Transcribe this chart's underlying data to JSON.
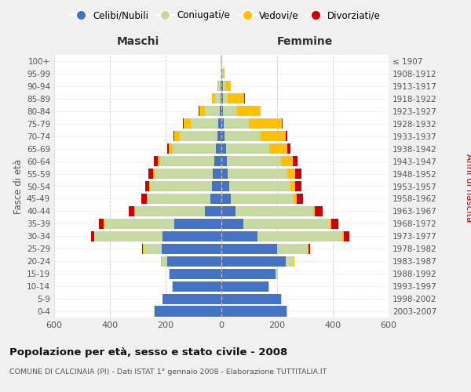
{
  "age_groups": [
    "0-4",
    "5-9",
    "10-14",
    "15-19",
    "20-24",
    "25-29",
    "30-34",
    "35-39",
    "40-44",
    "45-49",
    "50-54",
    "55-59",
    "60-64",
    "65-69",
    "70-74",
    "75-79",
    "80-84",
    "85-89",
    "90-94",
    "95-99",
    "100+"
  ],
  "birth_years": [
    "2003-2007",
    "1998-2002",
    "1993-1997",
    "1988-1992",
    "1983-1987",
    "1978-1982",
    "1973-1977",
    "1968-1972",
    "1963-1967",
    "1958-1962",
    "1953-1957",
    "1948-1952",
    "1943-1947",
    "1938-1942",
    "1933-1937",
    "1928-1932",
    "1923-1927",
    "1918-1922",
    "1913-1917",
    "1908-1912",
    "≤ 1907"
  ],
  "male": {
    "celibe": [
      240,
      210,
      175,
      185,
      195,
      215,
      210,
      170,
      60,
      40,
      35,
      30,
      25,
      20,
      15,
      10,
      5,
      3,
      2,
      1,
      1
    ],
    "coniugato": [
      1,
      2,
      3,
      5,
      20,
      65,
      245,
      250,
      250,
      225,
      220,
      210,
      195,
      155,
      135,
      100,
      55,
      20,
      8,
      2,
      1
    ],
    "vedovo": [
      0,
      0,
      0,
      0,
      1,
      1,
      2,
      2,
      2,
      3,
      4,
      5,
      8,
      15,
      20,
      25,
      20,
      10,
      3,
      1,
      0
    ],
    "divorziato": [
      0,
      0,
      0,
      0,
      1,
      3,
      10,
      18,
      20,
      18,
      15,
      18,
      15,
      5,
      3,
      2,
      2,
      1,
      0,
      0,
      0
    ]
  },
  "female": {
    "nubile": [
      235,
      215,
      168,
      195,
      230,
      200,
      130,
      80,
      50,
      35,
      28,
      22,
      20,
      18,
      12,
      8,
      5,
      5,
      5,
      2,
      1
    ],
    "coniugata": [
      1,
      2,
      3,
      8,
      30,
      110,
      305,
      310,
      280,
      225,
      220,
      215,
      195,
      155,
      130,
      90,
      50,
      18,
      8,
      3,
      1
    ],
    "vedova": [
      0,
      0,
      0,
      0,
      1,
      2,
      5,
      5,
      5,
      10,
      18,
      28,
      40,
      65,
      90,
      120,
      85,
      60,
      20,
      5,
      1
    ],
    "divorziata": [
      0,
      0,
      0,
      0,
      2,
      5,
      18,
      25,
      28,
      22,
      20,
      22,
      18,
      10,
      5,
      3,
      2,
      1,
      0,
      0,
      0
    ]
  },
  "colors": {
    "celibe": "#4472c4",
    "coniugato": "#c5d9a0",
    "vedovo": "#ffc000",
    "divorziato": "#cc0000"
  },
  "title": "Popolazione per età, sesso e stato civile - 2008",
  "subtitle": "COMUNE DI CALCINAIA (PI) - Dati ISTAT 1° gennaio 2008 - Elaborazione TUTTITALIA.IT",
  "ylabel_left": "Fasce di età",
  "ylabel_right": "Anni di nascita",
  "xlabel_left": "Maschi",
  "xlabel_right": "Femmine",
  "xlim": 600,
  "bg_color": "#f0f0f0",
  "plot_bg": "#ffffff"
}
